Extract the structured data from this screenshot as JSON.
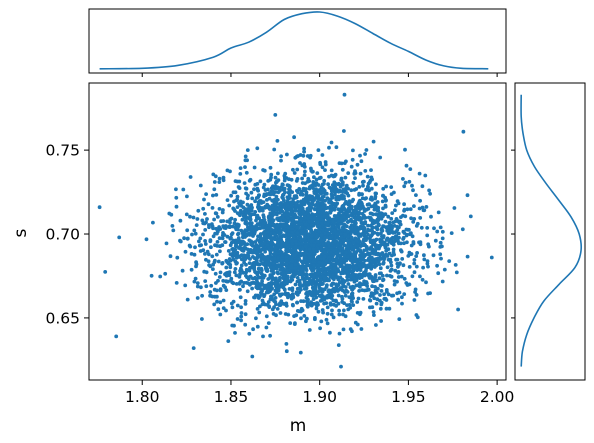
{
  "chart_data": {
    "type": "scatter",
    "subtype": "joint plot with marginal density curves",
    "xlabel": "m",
    "ylabel": "s",
    "xlim": [
      1.77,
      2.005
    ],
    "ylim": [
      0.613,
      0.79
    ],
    "x_ticks": [
      1.8,
      1.85,
      1.9,
      1.95,
      2.0
    ],
    "x_tick_labels": [
      "1.80",
      "1.85",
      "1.90",
      "1.95",
      "2.00"
    ],
    "y_ticks": [
      0.65,
      0.7,
      0.75
    ],
    "y_tick_labels": [
      "0.65",
      "0.70",
      "0.75"
    ],
    "grid": false,
    "legend": null,
    "series_color": "#1f77b4",
    "scatter": {
      "approx_count": 4000,
      "x_center": 1.895,
      "x_std": 0.028,
      "y_center": 0.695,
      "y_std": 0.02,
      "extreme_points": [
        [
          1.776,
          0.716
        ],
        [
          1.787,
          0.698
        ],
        [
          1.997,
          0.686
        ],
        [
          1.914,
          0.783
        ],
        [
          1.875,
          0.771
        ],
        [
          1.912,
          0.621
        ],
        [
          1.862,
          0.627
        ],
        [
          1.829,
          0.632
        ],
        [
          1.981,
          0.761
        ],
        [
          1.978,
          0.655
        ]
      ]
    },
    "marginal_x_density": {
      "x": [
        1.776,
        1.8,
        1.82,
        1.84,
        1.85,
        1.86,
        1.87,
        1.88,
        1.89,
        1.9,
        1.91,
        1.92,
        1.93,
        1.94,
        1.95,
        1.96,
        1.97,
        1.98,
        1.995
      ],
      "density": [
        0.02,
        0.03,
        0.08,
        0.22,
        0.38,
        0.48,
        0.65,
        0.87,
        0.97,
        1.0,
        0.93,
        0.8,
        0.63,
        0.46,
        0.32,
        0.17,
        0.07,
        0.03,
        0.02
      ]
    },
    "marginal_y_density": {
      "y": [
        0.621,
        0.63,
        0.64,
        0.65,
        0.66,
        0.67,
        0.68,
        0.69,
        0.7,
        0.71,
        0.72,
        0.73,
        0.74,
        0.75,
        0.76,
        0.77,
        0.783
      ],
      "density": [
        0.02,
        0.04,
        0.11,
        0.23,
        0.39,
        0.64,
        0.9,
        1.0,
        0.97,
        0.84,
        0.64,
        0.43,
        0.24,
        0.11,
        0.05,
        0.02,
        0.02
      ]
    }
  }
}
